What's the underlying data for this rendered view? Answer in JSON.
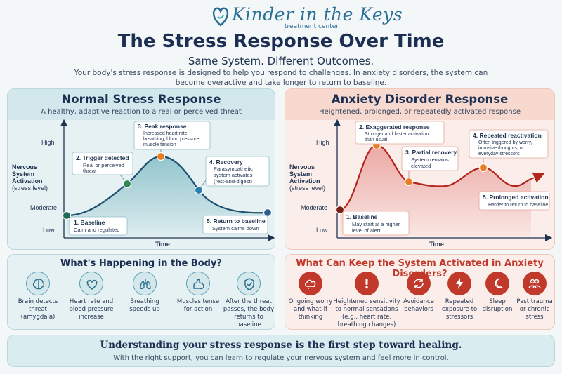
{
  "logo": {
    "brand": "Kinder in the Keys",
    "sub": "treatment center"
  },
  "title": "The Stress Response Over Time",
  "subtitle": "Same System. Different Outcomes.",
  "intro": "Your body's stress response is designed to help you respond to challenges. In anxiety disorders, the system can become overactive and take longer to return to baseline.",
  "normal": {
    "title": "Normal Stress Response",
    "subtitle": "A healthy, adaptive reaction to a real or perceived threat",
    "ylabel": [
      "Nervous",
      "System",
      "Activation",
      "(stress level)"
    ],
    "yticks": [
      "High",
      "Moderate",
      "Low"
    ],
    "xlabel": "Time",
    "annotations": [
      {
        "title": "1. Baseline",
        "lines": [
          "Calm and regulated"
        ]
      },
      {
        "title": "2. Trigger detected",
        "lines": [
          "Real or perceived",
          "threat"
        ]
      },
      {
        "title": "3. Peak response",
        "lines": [
          "Increased heart rate,",
          "breathing, blood pressure,",
          "muscle tension"
        ]
      },
      {
        "title": "4. Recovery",
        "lines": [
          "Parasympathetic",
          "system activates",
          "(rest-and-digest)"
        ]
      },
      {
        "title": "5. Return to baseline",
        "lines": [
          "System calms down"
        ]
      }
    ]
  },
  "anxiety": {
    "title": "Anxiety Disorder Response",
    "subtitle": "Heightened, prolonged, or repeatedly activated response",
    "ylabel": [
      "Nervous",
      "System",
      "Activation",
      "(stress level)"
    ],
    "yticks": [
      "High",
      "Moderate",
      "Low"
    ],
    "xlabel": "Time",
    "annotations": [
      {
        "title": "1. Baseline",
        "lines": [
          "May start at a higher",
          "level of alert"
        ]
      },
      {
        "title": "2. Exaggerated response",
        "lines": [
          "Stronger and faster activation",
          "than usual"
        ]
      },
      {
        "title": "3. Partial recovery",
        "lines": [
          "System remains",
          "elevated"
        ]
      },
      {
        "title": "4. Repeated reactivation",
        "lines": [
          "Often triggered by worry,",
          "intrusive thoughts, or",
          "everyday stressors"
        ]
      },
      {
        "title": "5. Prolonged activation",
        "lines": [
          "Harder to return to baseline"
        ]
      }
    ]
  },
  "body": {
    "title": "What's Happening in the Body?",
    "items": [
      {
        "icon": "brain-icon",
        "label": [
          "Brain detects",
          "threat (amygdala)"
        ]
      },
      {
        "icon": "heart-icon",
        "label": [
          "Heart rate and",
          "blood pressure",
          "increase"
        ]
      },
      {
        "icon": "lungs-icon",
        "label": [
          "Breathing",
          "speeds up"
        ]
      },
      {
        "icon": "muscle-icon",
        "label": [
          "Muscles tense",
          "for action"
        ]
      },
      {
        "icon": "shield-check-icon",
        "label": [
          "After the threat",
          "passes, the body",
          "returns to baseline"
        ]
      }
    ]
  },
  "keep": {
    "title": "What Can Keep the System Activated in Anxiety Disorders?",
    "items": [
      {
        "icon": "worry-cloud-icon",
        "label": [
          "Ongoing worry",
          "and what-if",
          "thinking"
        ]
      },
      {
        "icon": "exclamation-icon",
        "label": [
          "Heightened sensitivity",
          "to normal sensations",
          "(e.g., heart rate,",
          "breathing changes)"
        ]
      },
      {
        "icon": "avoidance-arrows-icon",
        "label": [
          "Avoidance",
          "behaviors"
        ]
      },
      {
        "icon": "lightning-icon",
        "label": [
          "Repeated",
          "exposure to",
          "stressors"
        ]
      },
      {
        "icon": "moon-icon",
        "label": [
          "Sleep",
          "disruption"
        ]
      },
      {
        "icon": "people-icon",
        "label": [
          "Past trauma",
          "or chronic",
          "stress"
        ]
      }
    ]
  },
  "footer": {
    "headline": "Understanding your stress response is the first step toward healing.",
    "text": "With the right support, you can learn to regulate your nervous system and feel more in control."
  },
  "colors": {
    "teal": "#2a7f8f",
    "red": "#c0392b",
    "navy": "#1c2f52",
    "orange": "#e67e22",
    "green": "#2e7d4f"
  }
}
